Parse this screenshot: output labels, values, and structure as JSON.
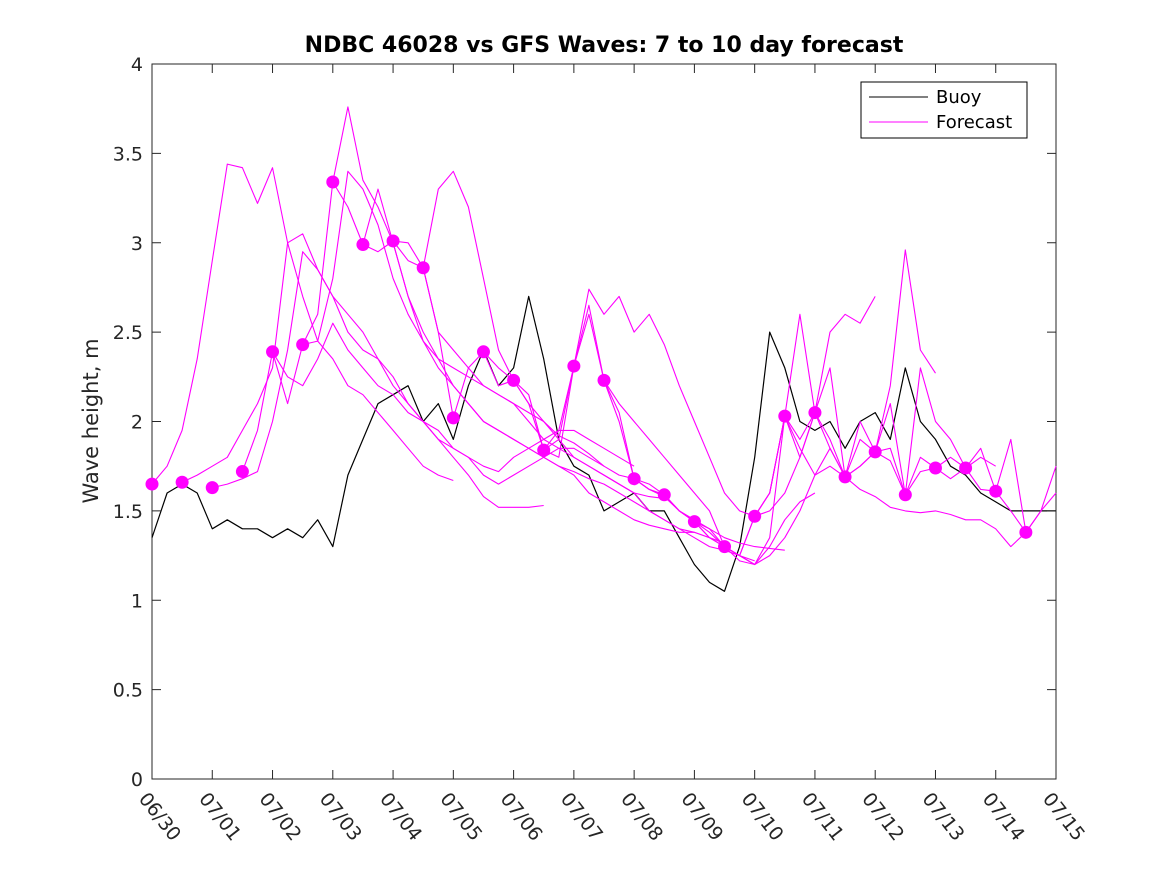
{
  "chart_data": {
    "type": "line",
    "title": "NDBC 46028 vs GFS Waves: 7 to 10 day forecast",
    "xlabel": "",
    "ylabel": "Wave height, m",
    "x_unit": "days",
    "xlim": [
      "06/30",
      "07/15"
    ],
    "ylim": [
      0,
      4
    ],
    "x_tick_labels": [
      "06/30",
      "07/01",
      "07/02",
      "07/03",
      "07/04",
      "07/05",
      "07/06",
      "07/07",
      "07/08",
      "07/09",
      "07/10",
      "07/11",
      "07/12",
      "07/13",
      "07/14",
      "07/15"
    ],
    "y_ticks": [
      0,
      0.5,
      1,
      1.5,
      2,
      2.5,
      3,
      3.5,
      4
    ],
    "y_tick_labels": [
      "0",
      "0.5",
      "1",
      "1.5",
      "2",
      "2.5",
      "3",
      "3.5",
      "4"
    ],
    "legend": {
      "position": "top-right",
      "entries": [
        "Buoy",
        "Forecast"
      ]
    },
    "colors": {
      "buoy": "#000000",
      "forecast": "#ff00ff"
    },
    "buoy": {
      "name": "Buoy",
      "x": [
        0,
        0.25,
        0.5,
        0.75,
        1.0,
        1.25,
        1.5,
        1.75,
        2.0,
        2.25,
        2.5,
        2.75,
        3.0,
        3.25,
        3.5,
        3.75,
        4.0,
        4.25,
        4.5,
        4.75,
        5.0,
        5.25,
        5.5,
        5.75,
        6.0,
        6.25,
        6.5,
        6.75,
        7.0,
        7.25,
        7.5,
        7.75,
        8.0,
        8.25,
        8.5,
        8.75,
        9.0,
        9.25,
        9.5,
        9.75,
        10.0,
        10.25,
        10.5,
        10.75,
        11.0,
        11.25,
        11.5,
        11.75,
        12.0,
        12.25,
        12.5,
        12.75,
        13.0,
        13.25,
        13.5,
        13.75,
        14.0,
        14.25,
        14.5,
        14.75,
        15.0
      ],
      "y": [
        1.35,
        1.6,
        1.65,
        1.6,
        1.4,
        1.45,
        1.4,
        1.4,
        1.35,
        1.4,
        1.35,
        1.45,
        1.3,
        1.7,
        1.9,
        2.1,
        2.15,
        2.2,
        2.0,
        2.1,
        1.9,
        2.2,
        2.4,
        2.2,
        2.3,
        2.7,
        2.35,
        1.9,
        1.75,
        1.7,
        1.5,
        1.55,
        1.6,
        1.5,
        1.5,
        1.35,
        1.2,
        1.1,
        1.05,
        1.3,
        1.8,
        2.5,
        2.3,
        2.0,
        1.95,
        2.0,
        1.85,
        2.0,
        2.05,
        1.9,
        2.3,
        2.0,
        1.9,
        1.75,
        1.7,
        1.6,
        1.55,
        1.5,
        1.5,
        1.5,
        1.5
      ]
    },
    "forecast_series": [
      {
        "x": [
          0.0,
          0.25,
          0.5,
          0.75,
          1.0,
          1.25,
          1.5,
          1.75,
          2.0,
          2.25,
          2.5,
          2.75,
          3.0,
          3.25,
          3.5,
          3.75,
          4.0,
          4.25,
          4.5,
          4.75,
          5.0
        ],
        "y": [
          1.65,
          1.75,
          1.95,
          2.35,
          2.9,
          3.44,
          3.42,
          3.22,
          3.42,
          3.0,
          2.7,
          2.45,
          2.35,
          2.2,
          2.15,
          2.05,
          1.95,
          1.85,
          1.75,
          1.7,
          1.67
        ]
      },
      {
        "x": [
          0.5,
          0.75,
          1.0,
          1.25,
          1.5,
          1.75,
          2.0,
          2.25,
          2.5,
          2.75,
          3.0,
          3.25,
          3.5,
          3.75,
          4.0,
          4.25,
          4.5,
          4.75,
          5.0,
          5.25,
          5.5,
          5.75,
          6.0,
          6.25,
          6.5
        ],
        "y": [
          1.66,
          1.7,
          1.75,
          1.8,
          1.95,
          2.1,
          2.3,
          3.0,
          3.05,
          2.85,
          2.7,
          2.5,
          2.4,
          2.35,
          2.25,
          2.1,
          2.0,
          1.9,
          1.8,
          1.7,
          1.58,
          1.52,
          1.52,
          1.52,
          1.53
        ]
      },
      {
        "x": [
          1.0,
          1.25,
          1.5,
          1.75,
          2.0,
          2.25,
          2.5,
          2.75,
          3.0,
          3.25,
          3.5,
          3.75,
          4.0,
          4.25,
          4.5,
          4.75,
          5.0,
          5.25,
          5.5,
          5.75,
          6.0,
          6.25,
          6.5,
          6.75,
          7.0,
          7.25,
          7.5
        ],
        "y": [
          1.63,
          1.65,
          1.68,
          1.72,
          2.0,
          2.4,
          2.95,
          2.85,
          2.7,
          2.6,
          2.5,
          2.35,
          2.2,
          2.1,
          2.0,
          1.95,
          1.85,
          1.8,
          1.7,
          1.65,
          1.7,
          1.75,
          1.8,
          1.85,
          1.85,
          1.8,
          1.75
        ]
      },
      {
        "x": [
          1.5,
          1.75,
          2.0,
          2.25,
          2.5,
          2.75,
          3.0,
          3.25,
          3.5,
          3.75,
          4.0,
          4.25,
          4.5,
          4.75,
          5.0,
          5.25,
          5.5,
          5.75,
          6.0,
          6.25,
          6.5,
          6.75,
          7.0,
          7.25,
          7.5,
          7.75,
          8.0
        ],
        "y": [
          1.72,
          1.95,
          2.39,
          2.25,
          2.2,
          2.35,
          2.55,
          2.4,
          2.3,
          2.2,
          2.15,
          2.05,
          2.0,
          1.9,
          1.85,
          1.8,
          1.75,
          1.72,
          1.8,
          1.85,
          1.9,
          1.95,
          1.95,
          1.9,
          1.85,
          1.8,
          1.75
        ]
      },
      {
        "x": [
          2.0,
          2.25,
          2.5,
          2.75,
          3.0,
          3.25,
          3.5,
          3.75,
          4.0,
          4.25,
          4.5,
          4.75,
          5.0,
          5.25,
          5.5,
          5.75,
          6.0,
          6.25,
          6.5,
          6.75,
          7.0,
          7.25,
          7.5,
          7.75,
          8.0,
          8.25,
          8.5
        ],
        "y": [
          2.39,
          2.1,
          2.43,
          2.45,
          2.8,
          3.4,
          3.3,
          3.1,
          2.8,
          2.6,
          2.45,
          2.35,
          2.3,
          2.25,
          2.2,
          2.15,
          2.1,
          2.0,
          1.9,
          1.85,
          1.8,
          1.75,
          1.7,
          1.65,
          1.6,
          1.58,
          1.57
        ]
      },
      {
        "x": [
          2.5,
          2.75,
          3.0,
          3.25,
          3.5,
          3.75,
          4.0,
          4.25,
          4.5,
          4.75,
          5.0,
          5.25,
          5.5,
          5.75,
          6.0,
          6.25,
          6.5,
          6.75,
          7.0,
          7.25,
          7.5,
          7.75,
          8.0,
          8.25,
          8.5,
          8.75,
          9.0
        ],
        "y": [
          2.43,
          2.6,
          3.34,
          3.76,
          3.35,
          3.2,
          3.0,
          2.7,
          2.45,
          2.3,
          2.2,
          2.1,
          2.0,
          1.95,
          1.9,
          1.85,
          1.8,
          1.75,
          1.7,
          1.6,
          1.55,
          1.5,
          1.45,
          1.42,
          1.4,
          1.38,
          1.38
        ]
      },
      {
        "x": [
          3.0,
          3.25,
          3.5,
          3.75,
          4.0,
          4.25,
          4.5,
          4.75,
          5.0,
          5.25,
          5.5,
          5.75,
          6.0,
          6.25,
          6.5,
          6.75,
          7.0,
          7.25,
          7.5,
          7.75,
          8.0,
          8.25,
          8.5,
          8.75,
          9.0,
          9.25,
          9.5
        ],
        "y": [
          3.34,
          3.2,
          2.99,
          3.3,
          3.0,
          2.7,
          2.5,
          2.35,
          2.2,
          2.1,
          2.0,
          1.95,
          1.9,
          1.85,
          1.8,
          1.75,
          1.72,
          1.68,
          1.65,
          1.6,
          1.55,
          1.5,
          1.45,
          1.4,
          1.38,
          1.35,
          1.32
        ]
      },
      {
        "x": [
          3.5,
          3.75,
          4.0,
          4.25,
          4.5,
          4.75,
          5.0,
          5.25,
          5.5,
          5.75,
          6.0,
          6.25,
          6.5,
          6.75,
          7.0,
          7.25,
          7.5,
          7.75,
          8.0,
          8.25,
          8.5,
          8.75,
          9.0,
          9.25,
          9.5,
          9.75,
          10.0
        ],
        "y": [
          2.99,
          2.95,
          3.01,
          3.0,
          2.86,
          2.5,
          2.4,
          2.3,
          2.2,
          2.15,
          2.1,
          2.05,
          2.0,
          1.9,
          1.8,
          1.75,
          1.7,
          1.65,
          1.6,
          1.5,
          1.45,
          1.4,
          1.35,
          1.3,
          1.28,
          1.25,
          1.22
        ]
      },
      {
        "x": [
          4.0,
          4.25,
          4.5,
          4.75,
          5.0,
          5.25,
          5.5,
          5.75,
          6.0,
          6.25,
          6.5,
          6.75,
          7.0,
          7.25,
          7.5,
          7.75,
          8.0,
          8.25,
          8.5,
          8.75,
          9.0,
          9.25,
          9.5,
          9.75,
          10.0,
          10.25,
          10.5
        ],
        "y": [
          3.01,
          2.9,
          2.86,
          3.3,
          3.4,
          3.2,
          2.8,
          2.4,
          2.23,
          2.1,
          2.0,
          1.92,
          1.88,
          1.82,
          1.75,
          1.7,
          1.68,
          1.62,
          1.58,
          1.5,
          1.45,
          1.4,
          1.35,
          1.32,
          1.3,
          1.29,
          1.28
        ]
      },
      {
        "x": [
          4.5,
          4.75,
          5.0,
          5.25,
          5.5,
          5.75,
          6.0,
          6.25,
          6.5,
          6.75,
          7.0,
          7.25,
          7.5,
          7.75,
          8.0,
          8.25,
          8.5,
          8.75,
          9.0,
          9.25,
          9.5,
          9.75,
          10.0,
          10.25,
          10.5,
          10.75,
          11.0
        ],
        "y": [
          2.86,
          2.5,
          2.02,
          2.3,
          2.39,
          2.2,
          2.23,
          2.15,
          1.84,
          1.95,
          2.31,
          2.6,
          2.23,
          2.1,
          2.0,
          1.9,
          1.8,
          1.7,
          1.6,
          1.5,
          1.3,
          1.25,
          1.2,
          1.3,
          1.45,
          1.55,
          1.6
        ]
      },
      {
        "x": [
          5.5,
          5.75,
          6.0,
          6.25,
          6.5,
          6.75,
          7.0,
          7.25,
          7.5,
          7.75,
          8.0,
          8.25,
          8.5,
          8.75,
          9.0,
          9.25,
          9.5,
          9.75,
          10.0,
          10.25,
          10.5,
          10.75,
          11.0,
          11.25,
          11.5,
          11.75,
          12.0
        ],
        "y": [
          2.39,
          2.3,
          2.23,
          2.1,
          1.84,
          1.8,
          2.31,
          2.74,
          2.6,
          2.7,
          2.5,
          2.6,
          2.43,
          2.2,
          2.0,
          1.8,
          1.6,
          1.5,
          1.47,
          1.5,
          1.6,
          1.8,
          2.05,
          2.5,
          2.6,
          2.55,
          2.7
        ]
      },
      {
        "x": [
          6.5,
          6.75,
          7.0,
          7.25,
          7.5,
          7.75,
          8.0,
          8.25,
          8.5,
          8.75,
          9.0,
          9.25,
          9.5,
          9.75,
          10.0,
          10.25,
          10.5,
          10.75,
          11.0,
          11.25,
          11.5,
          11.75,
          12.0,
          12.25,
          12.5,
          12.75,
          13.0
        ],
        "y": [
          1.84,
          1.9,
          2.31,
          2.65,
          2.23,
          2.05,
          1.68,
          1.65,
          1.59,
          1.5,
          1.44,
          1.35,
          1.3,
          1.25,
          1.2,
          1.35,
          2.03,
          2.6,
          2.05,
          2.3,
          1.69,
          2.0,
          1.83,
          2.2,
          2.96,
          2.4,
          2.27
        ]
      },
      {
        "x": [
          7.5,
          7.75,
          8.0,
          8.25,
          8.5,
          8.75,
          9.0,
          9.25,
          9.5,
          9.75,
          10.0,
          10.25,
          10.5,
          10.75,
          11.0,
          11.25,
          11.5,
          11.75,
          12.0,
          12.25,
          12.5,
          12.75,
          13.0,
          13.25,
          13.5,
          13.75,
          14.0
        ],
        "y": [
          2.23,
          2.0,
          1.68,
          1.62,
          1.59,
          1.5,
          1.44,
          1.38,
          1.3,
          1.22,
          1.2,
          1.25,
          1.35,
          1.5,
          1.7,
          1.85,
          1.69,
          1.9,
          1.83,
          2.1,
          1.59,
          2.3,
          2.0,
          1.9,
          1.74,
          1.8,
          1.75
        ]
      },
      {
        "x": [
          8.0,
          8.25,
          8.5,
          8.75,
          9.0,
          9.25,
          9.5,
          9.75,
          10.0,
          10.25,
          10.5,
          10.75,
          11.0,
          11.25,
          11.5,
          11.75,
          12.0,
          12.25,
          12.5,
          12.75,
          13.0,
          13.25,
          13.5,
          13.75,
          14.0,
          14.25,
          14.5
        ],
        "y": [
          1.68,
          1.62,
          1.59,
          1.5,
          1.44,
          1.4,
          1.3,
          1.25,
          1.47,
          1.6,
          2.03,
          1.8,
          2.05,
          1.9,
          1.69,
          1.75,
          1.83,
          1.85,
          1.59,
          1.8,
          1.74,
          1.8,
          1.74,
          1.85,
          1.61,
          1.9,
          1.38
        ]
      },
      {
        "x": [
          9.0,
          9.25,
          9.5,
          9.75,
          10.0,
          10.25,
          10.5,
          10.75,
          11.0,
          11.25,
          11.5,
          11.75,
          12.0,
          12.25,
          12.5,
          12.75,
          13.0,
          13.25,
          13.5,
          13.75,
          14.0,
          14.25,
          14.5,
          14.75,
          15.0
        ],
        "y": [
          1.44,
          1.35,
          1.3,
          1.25,
          1.47,
          1.6,
          2.03,
          1.9,
          2.05,
          1.85,
          1.69,
          1.62,
          1.58,
          1.52,
          1.5,
          1.49,
          1.5,
          1.48,
          1.45,
          1.45,
          1.4,
          1.3,
          1.38,
          1.5,
          1.6
        ]
      },
      {
        "x": [
          10.0,
          10.25,
          10.5,
          10.75,
          11.0,
          11.25,
          11.5,
          11.75,
          12.0,
          12.25,
          12.5,
          12.75,
          13.0,
          13.25,
          13.5,
          13.75,
          14.0,
          14.25,
          14.5,
          14.75,
          15.0
        ],
        "y": [
          1.47,
          1.6,
          2.03,
          1.85,
          1.7,
          1.75,
          1.69,
          1.75,
          1.83,
          1.78,
          1.59,
          1.72,
          1.74,
          1.68,
          1.74,
          1.62,
          1.61,
          1.5,
          1.38,
          1.5,
          1.75
        ]
      }
    ],
    "forecast_markers": {
      "x": [
        0.0,
        0.5,
        1.0,
        1.5,
        2.0,
        2.5,
        3.0,
        3.5,
        4.0,
        4.5,
        5.0,
        5.5,
        6.0,
        6.5,
        7.0,
        7.5,
        8.0,
        8.5,
        9.0,
        9.5,
        10.0,
        10.5,
        11.0,
        11.5,
        12.0,
        12.5,
        13.0,
        13.5,
        14.0,
        14.5
      ],
      "y": [
        1.65,
        1.66,
        1.63,
        1.72,
        2.39,
        2.43,
        3.34,
        2.99,
        3.01,
        2.86,
        2.02,
        2.39,
        2.23,
        1.84,
        2.31,
        2.23,
        1.68,
        1.59,
        1.44,
        1.3,
        1.47,
        2.03,
        2.05,
        1.69,
        1.83,
        1.59,
        1.74,
        1.74,
        1.61,
        1.38
      ]
    }
  }
}
